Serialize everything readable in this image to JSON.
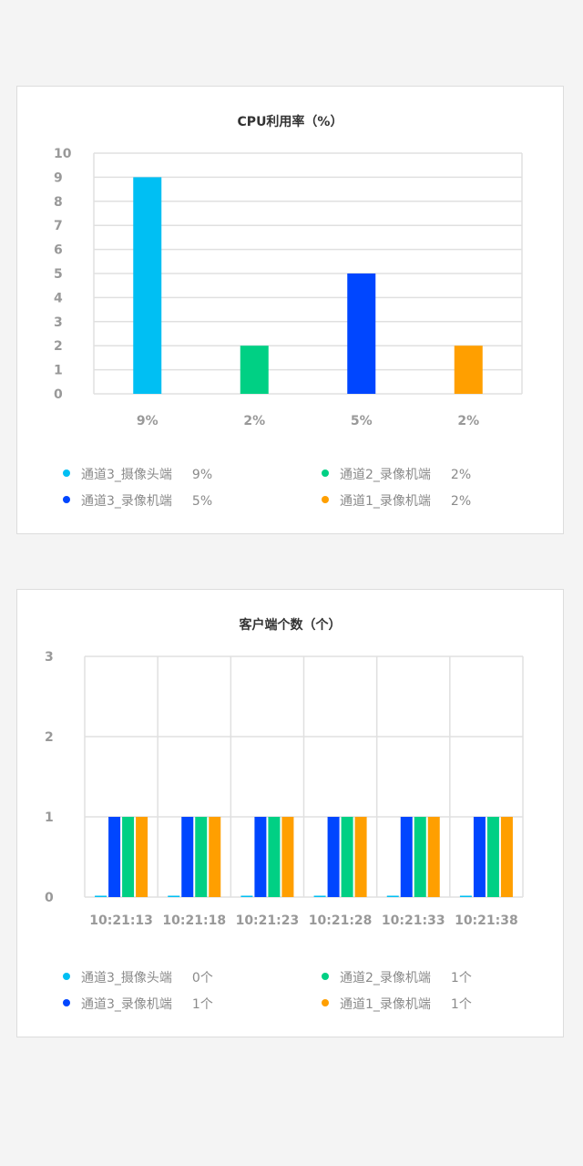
{
  "colors": {
    "cyan": "#00bff3",
    "green": "#00d084",
    "blue": "#0046ff",
    "orange": "#ff9f00",
    "grid": "#e0e0e0",
    "axis_text": "#999999"
  },
  "cpu_card": {
    "title": "CPU利用率（%）",
    "legend": [
      {
        "label": "通道3_摄像头端",
        "value": "9%",
        "color": "#00bff3"
      },
      {
        "label": "通道2_录像机端",
        "value": "2%",
        "color": "#00d084"
      },
      {
        "label": "通道3_录像机端",
        "value": "5%",
        "color": "#0046ff"
      },
      {
        "label": "通道1_录像机端",
        "value": "2%",
        "color": "#ff9f00"
      }
    ]
  },
  "client_card": {
    "title": "客户端个数（个）",
    "legend": [
      {
        "label": "通道3_摄像头端",
        "value": "0个",
        "color": "#00bff3"
      },
      {
        "label": "通道2_录像机端",
        "value": "1个",
        "color": "#00d084"
      },
      {
        "label": "通道3_录像机端",
        "value": "1个",
        "color": "#0046ff"
      },
      {
        "label": "通道1_录像机端",
        "value": "1个",
        "color": "#ff9f00"
      }
    ]
  },
  "chart_data": [
    {
      "type": "bar",
      "title": "CPU利用率（%）",
      "categories": [
        "9%",
        "2%",
        "5%",
        "2%"
      ],
      "values": [
        9,
        2,
        5,
        2
      ],
      "colors": [
        "#00bff3",
        "#00d084",
        "#0046ff",
        "#ff9f00"
      ],
      "ylim": [
        0,
        10
      ],
      "yticks": [
        0,
        1,
        2,
        3,
        4,
        5,
        6,
        7,
        8,
        9,
        10
      ],
      "grid": true
    },
    {
      "type": "bar",
      "title": "客户端个数（个）",
      "categories": [
        "10:21:13",
        "10:21:18",
        "10:21:23",
        "10:21:28",
        "10:21:33",
        "10:21:38"
      ],
      "series": [
        {
          "name": "通道3_摄像头端",
          "color": "#00bff3",
          "values": [
            0,
            0,
            0,
            0,
            0,
            0
          ]
        },
        {
          "name": "通道3_录像机端",
          "color": "#0046ff",
          "values": [
            1,
            1,
            1,
            1,
            1,
            1
          ]
        },
        {
          "name": "通道2_录像机端",
          "color": "#00d084",
          "values": [
            1,
            1,
            1,
            1,
            1,
            1
          ]
        },
        {
          "name": "通道1_录像机端",
          "color": "#ff9f00",
          "values": [
            1,
            1,
            1,
            1,
            1,
            1
          ]
        }
      ],
      "ylim": [
        0,
        3
      ],
      "yticks": [
        0,
        1,
        2,
        3
      ],
      "grid": true
    }
  ]
}
